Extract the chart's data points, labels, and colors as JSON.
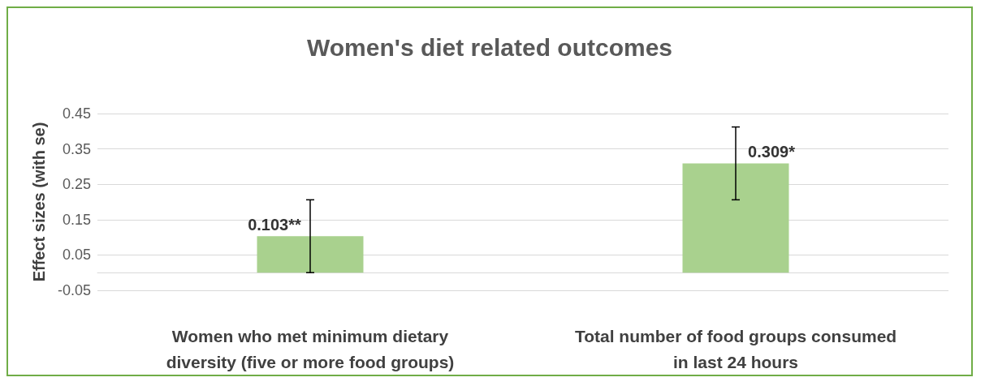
{
  "chart_data": {
    "type": "bar",
    "title": "Women's diet related outcomes",
    "ylabel": "Effect sizes (with se)",
    "categories": [
      "Women who met minimum dietary\ndiversity (five or more food groups)",
      "Total number of food groups consumed\nin last 24 hours"
    ],
    "values": [
      0.103,
      0.309
    ],
    "color": "#a9d18e",
    "errors": [
      0.103,
      0.103
    ],
    "value_labels": [
      "0.103**",
      "0.309*"
    ],
    "ylim": [
      -0.05,
      0.45
    ],
    "yticks": [
      -0.05,
      0.05,
      0.15,
      0.25,
      0.35,
      0.45
    ],
    "grid": "y"
  }
}
